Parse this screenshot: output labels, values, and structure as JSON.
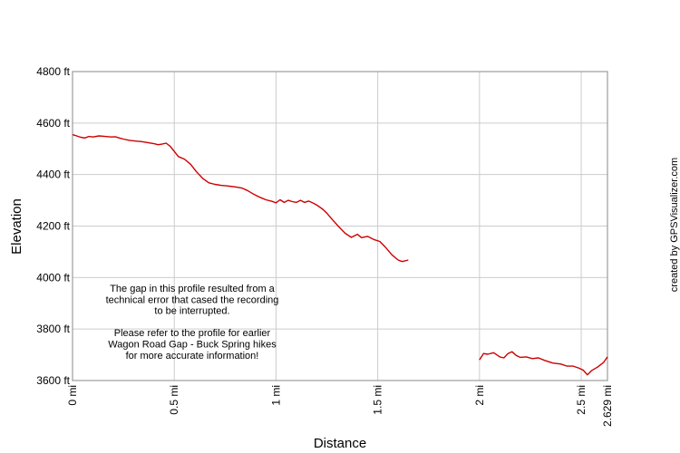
{
  "chart_data": {
    "type": "line",
    "xlabel": "Distance",
    "ylabel": "Elevation",
    "credit": "created by GPSVisualizer.com",
    "xlim": [
      0,
      2.629
    ],
    "ylim": [
      3600,
      4800
    ],
    "x_ticks": [
      {
        "value": 0,
        "label": "0 mi"
      },
      {
        "value": 0.5,
        "label": "0.5 mi"
      },
      {
        "value": 1,
        "label": "1 mi"
      },
      {
        "value": 1.5,
        "label": "1.5 mi"
      },
      {
        "value": 2,
        "label": "2 mi"
      },
      {
        "value": 2.5,
        "label": "2.5 mi"
      },
      {
        "value": 2.629,
        "label": "2.629 mi"
      }
    ],
    "y_ticks": [
      {
        "value": 3600,
        "label": "3600 ft"
      },
      {
        "value": 3800,
        "label": "3800 ft"
      },
      {
        "value": 4000,
        "label": "4000 ft"
      },
      {
        "value": 4200,
        "label": "4200 ft"
      },
      {
        "value": 4400,
        "label": "4400 ft"
      },
      {
        "value": 4600,
        "label": "4600 ft"
      },
      {
        "value": 4800,
        "label": "4800 ft"
      }
    ],
    "grid": true,
    "line_color": "#cc0000",
    "annotation": [
      "The gap in this profile resulted from a",
      "technical error that cased the recording",
      "to be interrupted.",
      "",
      "Please refer to the profile for earlier",
      "Wagon Road Gap - Buck Spring hikes",
      "for more accurate information!"
    ],
    "series": [
      {
        "segments": [
          [
            [
              0,
              4555
            ],
            [
              0.02,
              4550
            ],
            [
              0.04,
              4545
            ],
            [
              0.06,
              4542
            ],
            [
              0.08,
              4548
            ],
            [
              0.1,
              4546
            ],
            [
              0.13,
              4550
            ],
            [
              0.16,
              4548
            ],
            [
              0.19,
              4546
            ],
            [
              0.21,
              4547
            ],
            [
              0.23,
              4542
            ],
            [
              0.25,
              4538
            ],
            [
              0.28,
              4533
            ],
            [
              0.31,
              4530
            ],
            [
              0.34,
              4528
            ],
            [
              0.37,
              4524
            ],
            [
              0.4,
              4520
            ],
            [
              0.42,
              4516
            ],
            [
              0.44,
              4518
            ],
            [
              0.46,
              4522
            ],
            [
              0.48,
              4510
            ],
            [
              0.5,
              4490
            ],
            [
              0.52,
              4470
            ],
            [
              0.55,
              4460
            ],
            [
              0.58,
              4440
            ],
            [
              0.61,
              4410
            ],
            [
              0.64,
              4385
            ],
            [
              0.67,
              4368
            ],
            [
              0.7,
              4362
            ],
            [
              0.73,
              4358
            ],
            [
              0.76,
              4356
            ],
            [
              0.8,
              4352
            ],
            [
              0.83,
              4348
            ],
            [
              0.86,
              4338
            ],
            [
              0.89,
              4324
            ],
            [
              0.92,
              4312
            ],
            [
              0.95,
              4302
            ],
            [
              0.98,
              4296
            ],
            [
              1.0,
              4290
            ],
            [
              1.02,
              4302
            ],
            [
              1.04,
              4292
            ],
            [
              1.06,
              4300
            ],
            [
              1.08,
              4295
            ],
            [
              1.1,
              4292
            ],
            [
              1.12,
              4300
            ],
            [
              1.14,
              4292
            ],
            [
              1.16,
              4297
            ],
            [
              1.18,
              4290
            ],
            [
              1.2,
              4282
            ],
            [
              1.23,
              4265
            ],
            [
              1.25,
              4250
            ],
            [
              1.28,
              4222
            ],
            [
              1.31,
              4196
            ],
            [
              1.34,
              4172
            ],
            [
              1.37,
              4156
            ],
            [
              1.4,
              4168
            ],
            [
              1.42,
              4155
            ],
            [
              1.45,
              4160
            ],
            [
              1.48,
              4148
            ],
            [
              1.51,
              4140
            ],
            [
              1.54,
              4116
            ],
            [
              1.57,
              4088
            ],
            [
              1.6,
              4068
            ],
            [
              1.62,
              4062
            ],
            [
              1.65,
              4068
            ]
          ],
          [
            [
              2.0,
              3680
            ],
            [
              2.02,
              3705
            ],
            [
              2.04,
              3702
            ],
            [
              2.07,
              3708
            ],
            [
              2.1,
              3692
            ],
            [
              2.12,
              3688
            ],
            [
              2.14,
              3705
            ],
            [
              2.16,
              3712
            ],
            [
              2.18,
              3698
            ],
            [
              2.2,
              3690
            ],
            [
              2.23,
              3692
            ],
            [
              2.26,
              3685
            ],
            [
              2.29,
              3688
            ],
            [
              2.32,
              3678
            ],
            [
              2.36,
              3668
            ],
            [
              2.4,
              3664
            ],
            [
              2.43,
              3656
            ],
            [
              2.46,
              3656
            ],
            [
              2.49,
              3648
            ],
            [
              2.51,
              3640
            ],
            [
              2.53,
              3622
            ],
            [
              2.55,
              3638
            ],
            [
              2.58,
              3652
            ],
            [
              2.61,
              3670
            ],
            [
              2.629,
              3692
            ]
          ]
        ]
      }
    ]
  }
}
